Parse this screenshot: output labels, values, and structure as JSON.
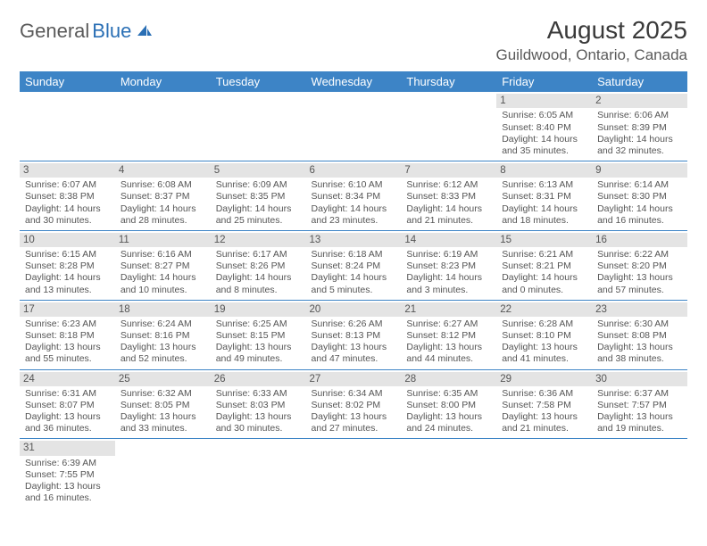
{
  "logo": {
    "word1": "General",
    "word2": "Blue"
  },
  "title": "August 2025",
  "location": "Guildwood, Ontario, Canada",
  "colors": {
    "header_bg": "#3d84c6",
    "header_text": "#ffffff",
    "daynum_bg": "#e4e4e4",
    "rule": "#3d84c6",
    "logo_gray": "#5a5a5a",
    "logo_blue": "#2a6fb5"
  },
  "day_headers": [
    "Sunday",
    "Monday",
    "Tuesday",
    "Wednesday",
    "Thursday",
    "Friday",
    "Saturday"
  ],
  "weeks": [
    [
      null,
      null,
      null,
      null,
      null,
      {
        "n": "1",
        "sr": "6:05 AM",
        "ss": "8:40 PM",
        "dl": "14 hours and 35 minutes."
      },
      {
        "n": "2",
        "sr": "6:06 AM",
        "ss": "8:39 PM",
        "dl": "14 hours and 32 minutes."
      }
    ],
    [
      {
        "n": "3",
        "sr": "6:07 AM",
        "ss": "8:38 PM",
        "dl": "14 hours and 30 minutes."
      },
      {
        "n": "4",
        "sr": "6:08 AM",
        "ss": "8:37 PM",
        "dl": "14 hours and 28 minutes."
      },
      {
        "n": "5",
        "sr": "6:09 AM",
        "ss": "8:35 PM",
        "dl": "14 hours and 25 minutes."
      },
      {
        "n": "6",
        "sr": "6:10 AM",
        "ss": "8:34 PM",
        "dl": "14 hours and 23 minutes."
      },
      {
        "n": "7",
        "sr": "6:12 AM",
        "ss": "8:33 PM",
        "dl": "14 hours and 21 minutes."
      },
      {
        "n": "8",
        "sr": "6:13 AM",
        "ss": "8:31 PM",
        "dl": "14 hours and 18 minutes."
      },
      {
        "n": "9",
        "sr": "6:14 AM",
        "ss": "8:30 PM",
        "dl": "14 hours and 16 minutes."
      }
    ],
    [
      {
        "n": "10",
        "sr": "6:15 AM",
        "ss": "8:28 PM",
        "dl": "14 hours and 13 minutes."
      },
      {
        "n": "11",
        "sr": "6:16 AM",
        "ss": "8:27 PM",
        "dl": "14 hours and 10 minutes."
      },
      {
        "n": "12",
        "sr": "6:17 AM",
        "ss": "8:26 PM",
        "dl": "14 hours and 8 minutes."
      },
      {
        "n": "13",
        "sr": "6:18 AM",
        "ss": "8:24 PM",
        "dl": "14 hours and 5 minutes."
      },
      {
        "n": "14",
        "sr": "6:19 AM",
        "ss": "8:23 PM",
        "dl": "14 hours and 3 minutes."
      },
      {
        "n": "15",
        "sr": "6:21 AM",
        "ss": "8:21 PM",
        "dl": "14 hours and 0 minutes."
      },
      {
        "n": "16",
        "sr": "6:22 AM",
        "ss": "8:20 PM",
        "dl": "13 hours and 57 minutes."
      }
    ],
    [
      {
        "n": "17",
        "sr": "6:23 AM",
        "ss": "8:18 PM",
        "dl": "13 hours and 55 minutes."
      },
      {
        "n": "18",
        "sr": "6:24 AM",
        "ss": "8:16 PM",
        "dl": "13 hours and 52 minutes."
      },
      {
        "n": "19",
        "sr": "6:25 AM",
        "ss": "8:15 PM",
        "dl": "13 hours and 49 minutes."
      },
      {
        "n": "20",
        "sr": "6:26 AM",
        "ss": "8:13 PM",
        "dl": "13 hours and 47 minutes."
      },
      {
        "n": "21",
        "sr": "6:27 AM",
        "ss": "8:12 PM",
        "dl": "13 hours and 44 minutes."
      },
      {
        "n": "22",
        "sr": "6:28 AM",
        "ss": "8:10 PM",
        "dl": "13 hours and 41 minutes."
      },
      {
        "n": "23",
        "sr": "6:30 AM",
        "ss": "8:08 PM",
        "dl": "13 hours and 38 minutes."
      }
    ],
    [
      {
        "n": "24",
        "sr": "6:31 AM",
        "ss": "8:07 PM",
        "dl": "13 hours and 36 minutes."
      },
      {
        "n": "25",
        "sr": "6:32 AM",
        "ss": "8:05 PM",
        "dl": "13 hours and 33 minutes."
      },
      {
        "n": "26",
        "sr": "6:33 AM",
        "ss": "8:03 PM",
        "dl": "13 hours and 30 minutes."
      },
      {
        "n": "27",
        "sr": "6:34 AM",
        "ss": "8:02 PM",
        "dl": "13 hours and 27 minutes."
      },
      {
        "n": "28",
        "sr": "6:35 AM",
        "ss": "8:00 PM",
        "dl": "13 hours and 24 minutes."
      },
      {
        "n": "29",
        "sr": "6:36 AM",
        "ss": "7:58 PM",
        "dl": "13 hours and 21 minutes."
      },
      {
        "n": "30",
        "sr": "6:37 AM",
        "ss": "7:57 PM",
        "dl": "13 hours and 19 minutes."
      }
    ],
    [
      {
        "n": "31",
        "sr": "6:39 AM",
        "ss": "7:55 PM",
        "dl": "13 hours and 16 minutes."
      },
      null,
      null,
      null,
      null,
      null,
      null
    ]
  ],
  "labels": {
    "sunrise": "Sunrise:",
    "sunset": "Sunset:",
    "daylight": "Daylight:"
  }
}
